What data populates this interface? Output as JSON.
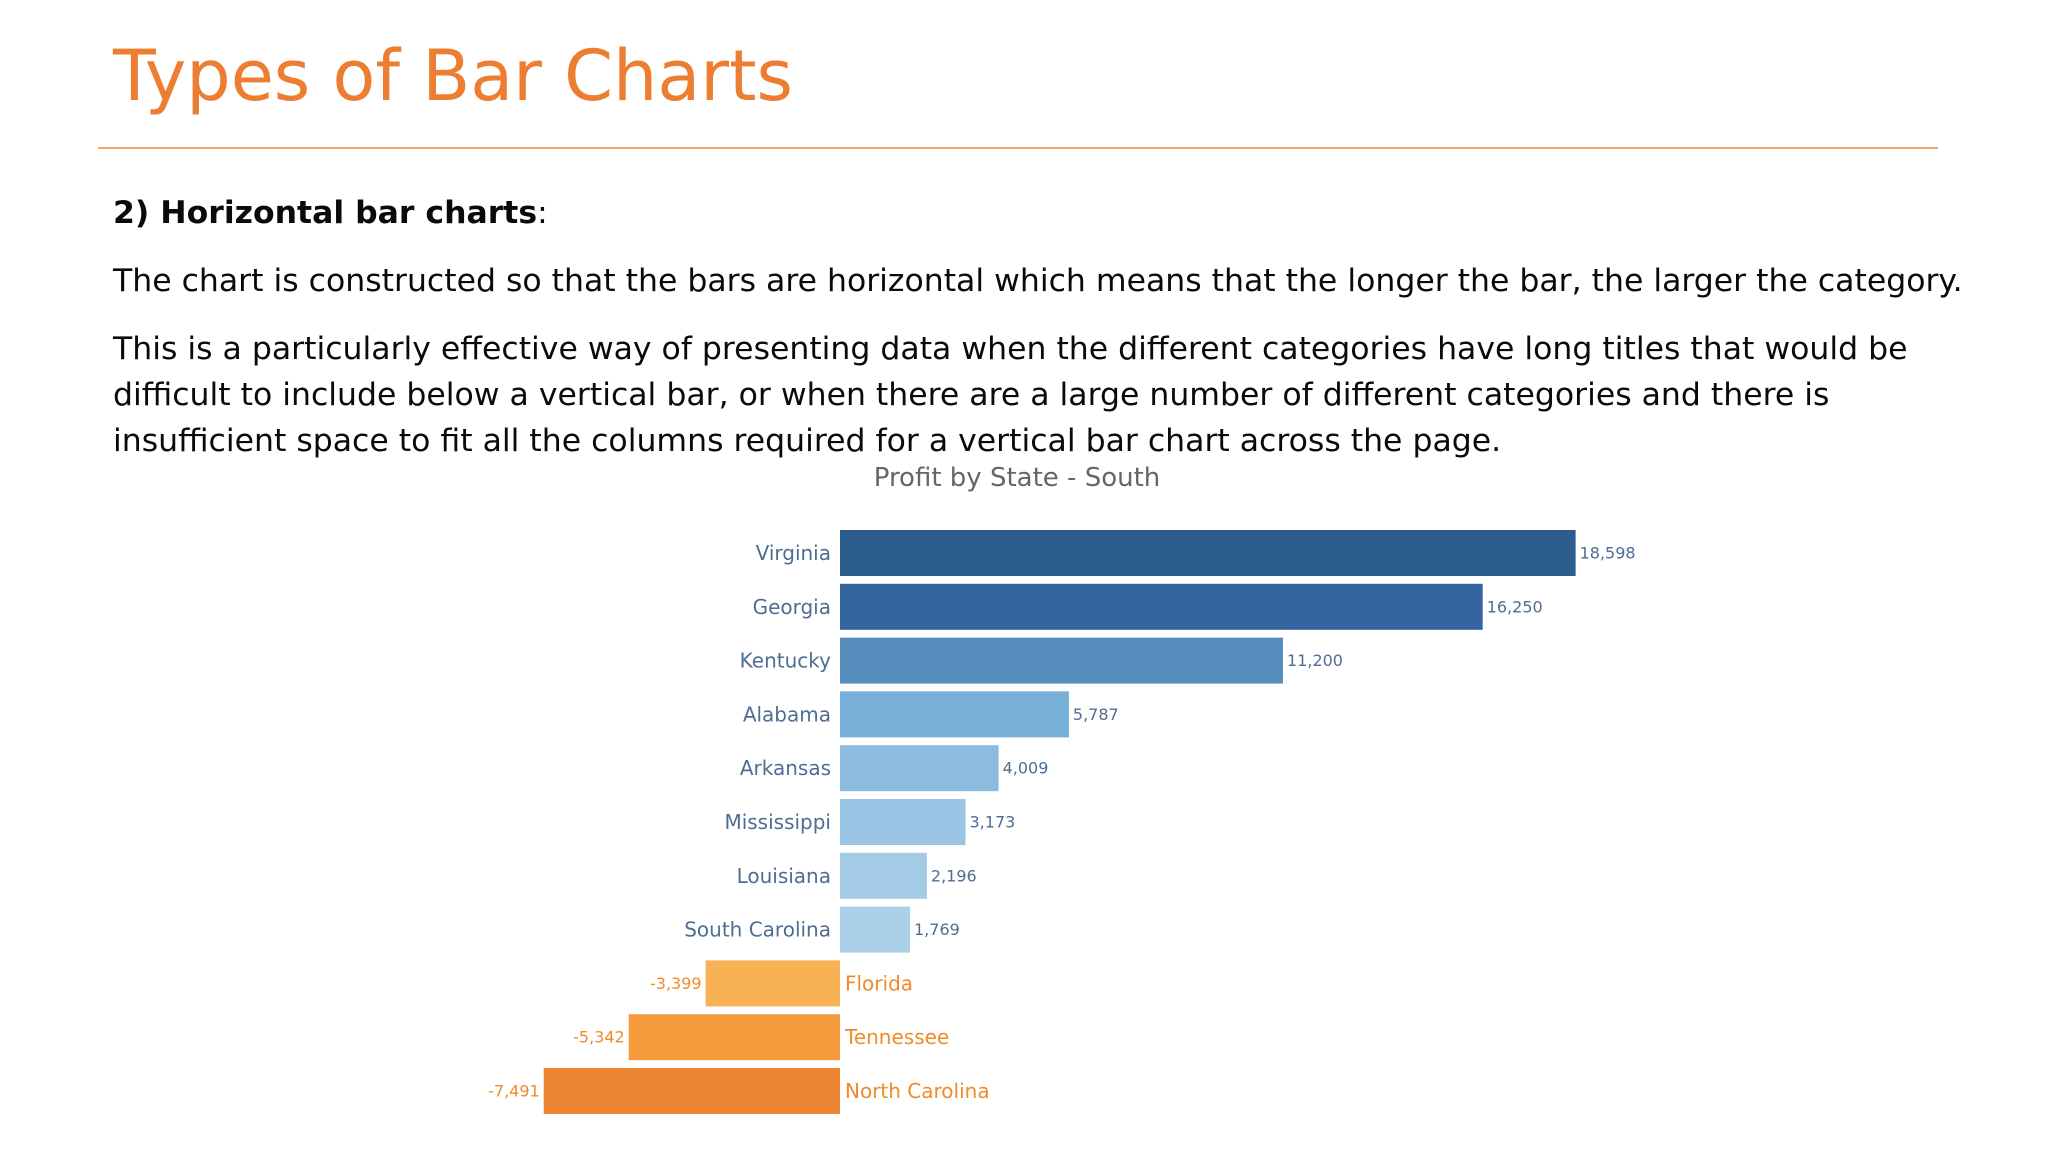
{
  "slide": {
    "title": "Types of Bar Charts",
    "section_heading": "2) Horizontal bar charts",
    "section_heading_suffix": ":",
    "paragraph_1": "The chart is constructed so that the bars are horizontal which means that the longer the bar, the larger the category.",
    "paragraph_2": "This is a particularly effective way of presenting data when the different categories have long titles that would be difficult to include below a vertical bar, or when there are a large number of different categories and there is insufficient space to fit all the columns required for a vertical bar chart across the page."
  },
  "colors": {
    "title": "#ed7d31",
    "positive_label": "#4e6d94",
    "negative_label": "#f08a2a"
  },
  "chart_data": {
    "type": "bar",
    "orientation": "horizontal",
    "title": "Profit by State - South",
    "xlabel": "",
    "ylabel": "",
    "grid": false,
    "legend": "none",
    "xlim": [
      -7491,
      18598
    ],
    "categories": [
      "Virginia",
      "Georgia",
      "Kentucky",
      "Alabama",
      "Arkansas",
      "Mississippi",
      "Louisiana",
      "South Carolina",
      "Florida",
      "Tennessee",
      "North Carolina"
    ],
    "values": [
      18598,
      16250,
      11200,
      5787,
      4009,
      3173,
      2196,
      1769,
      -3399,
      -5342,
      -7491
    ],
    "value_labels": [
      "18,598",
      "16,250",
      "11,200",
      "5,787",
      "4,009",
      "3,173",
      "2,196",
      "1,769",
      "-3,399",
      "-5,342",
      "-7,491"
    ],
    "bar_colors": [
      "#2c5d8c",
      "#3565a0",
      "#578dbd",
      "#77afd8",
      "#8bbbdf",
      "#99c4e3",
      "#a4cbe6",
      "#abd0e9",
      "#f8b154",
      "#f59a3c",
      "#ee8532"
    ]
  }
}
